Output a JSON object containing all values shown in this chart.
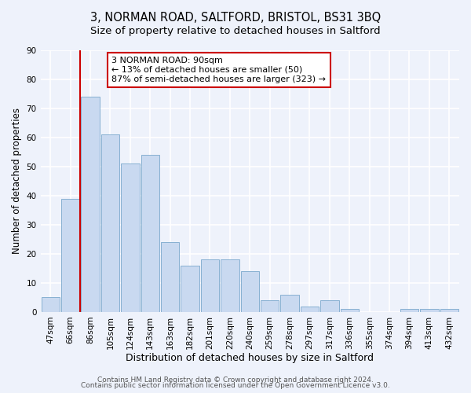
{
  "title": "3, NORMAN ROAD, SALTFORD, BRISTOL, BS31 3BQ",
  "subtitle": "Size of property relative to detached houses in Saltford",
  "xlabel": "Distribution of detached houses by size in Saltford",
  "ylabel": "Number of detached properties",
  "bar_labels": [
    "47sqm",
    "66sqm",
    "86sqm",
    "105sqm",
    "124sqm",
    "143sqm",
    "163sqm",
    "182sqm",
    "201sqm",
    "220sqm",
    "240sqm",
    "259sqm",
    "278sqm",
    "297sqm",
    "317sqm",
    "336sqm",
    "355sqm",
    "374sqm",
    "394sqm",
    "413sqm",
    "432sqm"
  ],
  "bar_values": [
    5,
    39,
    74,
    61,
    51,
    54,
    24,
    16,
    18,
    18,
    14,
    4,
    6,
    2,
    4,
    1,
    0,
    0,
    1,
    1,
    1
  ],
  "bar_color": "#c9d9f0",
  "bar_edge_color": "#7aa8cc",
  "vline_index": 2,
  "vline_color": "#cc0000",
  "annotation_line1": "3 NORMAN ROAD: 90sqm",
  "annotation_line2": "← 13% of detached houses are smaller (50)",
  "annotation_line3": "87% of semi-detached houses are larger (323) →",
  "annotation_box_color": "#ffffff",
  "annotation_box_edge": "#cc0000",
  "ylim": [
    0,
    90
  ],
  "yticks": [
    0,
    10,
    20,
    30,
    40,
    50,
    60,
    70,
    80,
    90
  ],
  "footer1": "Contains HM Land Registry data © Crown copyright and database right 2024.",
  "footer2": "Contains public sector information licensed under the Open Government Licence v3.0.",
  "background_color": "#eef2fb",
  "grid_color": "#ffffff",
  "title_fontsize": 10.5,
  "subtitle_fontsize": 9.5,
  "xlabel_fontsize": 9,
  "ylabel_fontsize": 8.5,
  "tick_fontsize": 7.5,
  "annotation_fontsize": 8,
  "footer_fontsize": 6.5
}
